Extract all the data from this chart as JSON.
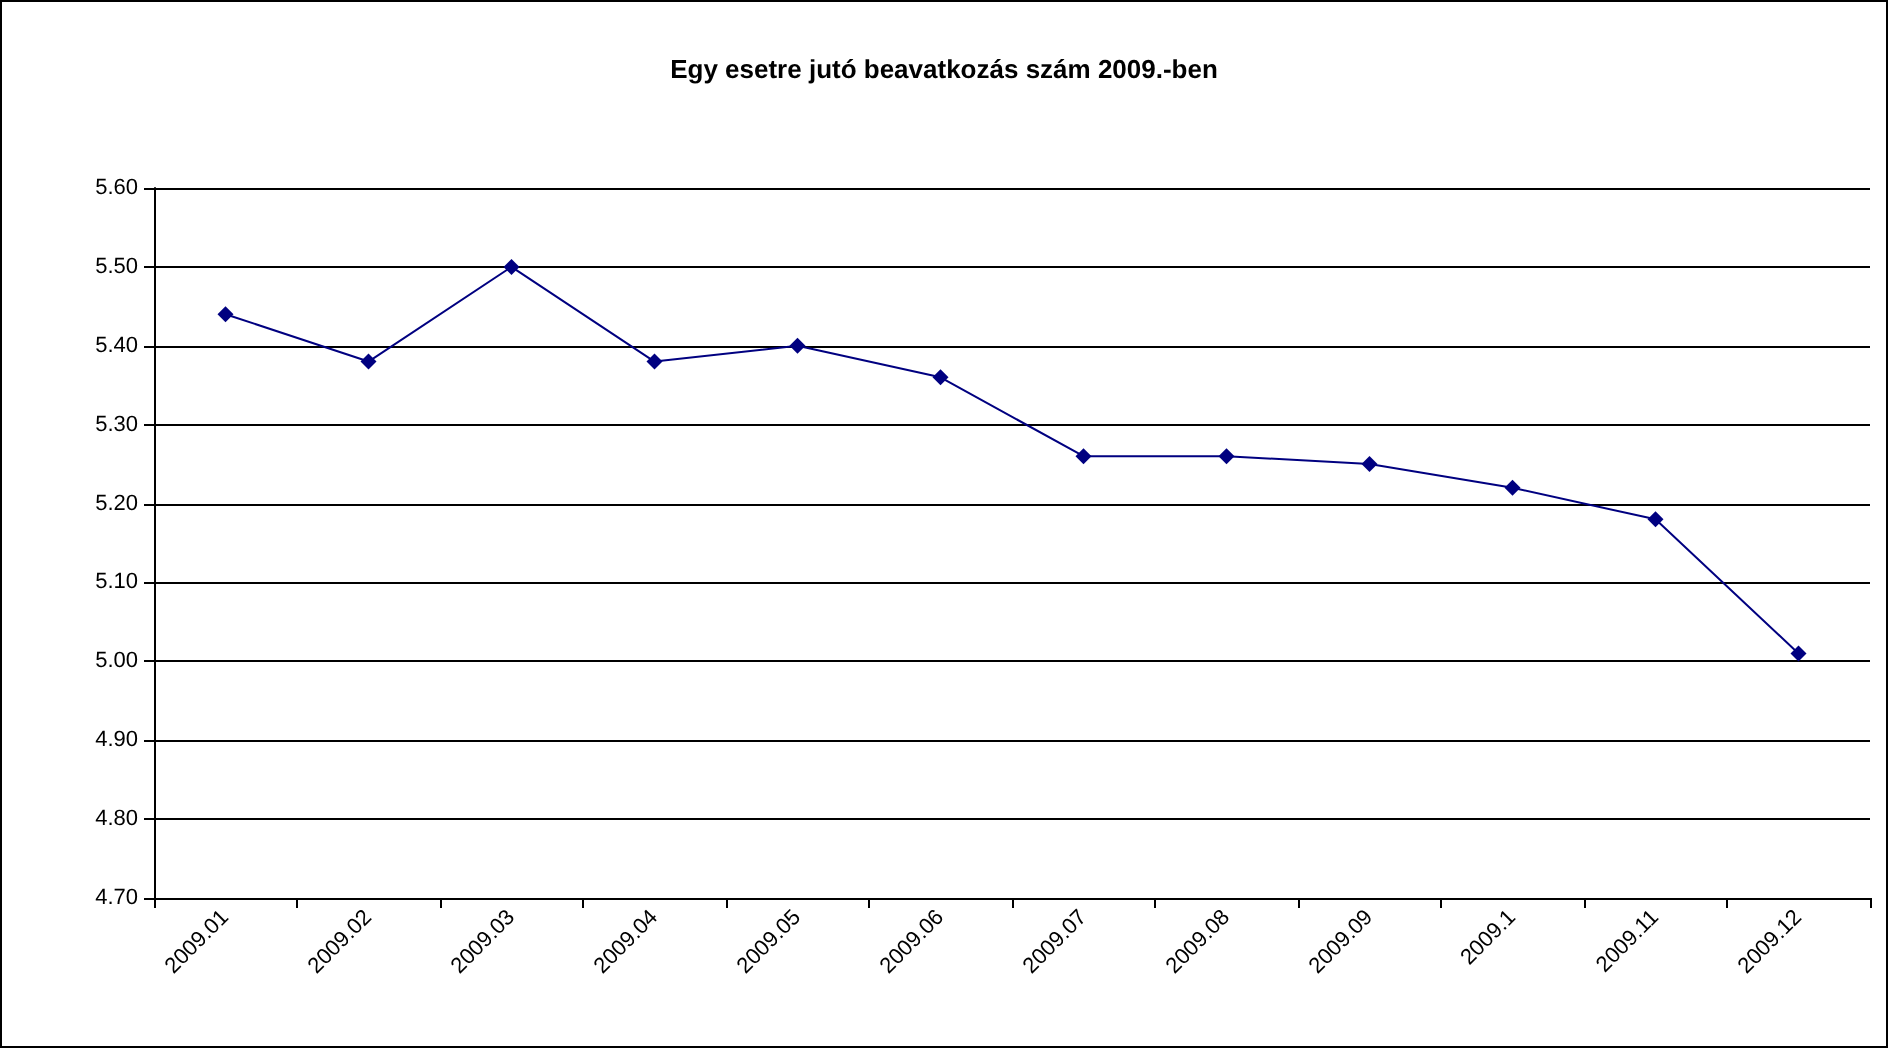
{
  "chart_data": {
    "type": "line",
    "title": "Egy esetre jutó beavatkozás szám 2009.-ben",
    "categories": [
      "2009.01",
      "2009.02",
      "2009.03",
      "2009.04",
      "2009.05",
      "2009.06",
      "2009.07",
      "2009.08",
      "2009.09",
      "2009.1",
      "2009.11",
      "2009.12"
    ],
    "series": [
      {
        "color": "#000080",
        "values": [
          5.44,
          5.38,
          5.5,
          5.38,
          5.4,
          5.36,
          5.26,
          5.26,
          5.25,
          5.22,
          5.18,
          5.01
        ]
      }
    ],
    "ylim": [
      4.7,
      5.6
    ],
    "yticks": [
      {
        "value": 4.7,
        "label": "4.70"
      },
      {
        "value": 4.8,
        "label": "4.80"
      },
      {
        "value": 4.9,
        "label": "4.90"
      },
      {
        "value": 5.0,
        "label": "5.00"
      },
      {
        "value": 5.1,
        "label": "5.10"
      },
      {
        "value": 5.2,
        "label": "5.20"
      },
      {
        "value": 5.3,
        "label": "5.30"
      },
      {
        "value": 5.4,
        "label": "5.40"
      },
      {
        "value": 5.5,
        "label": "5.50"
      },
      {
        "value": 5.6,
        "label": "5.60"
      }
    ],
    "grid": "y",
    "marker": "diamond",
    "line_style": "solid"
  }
}
